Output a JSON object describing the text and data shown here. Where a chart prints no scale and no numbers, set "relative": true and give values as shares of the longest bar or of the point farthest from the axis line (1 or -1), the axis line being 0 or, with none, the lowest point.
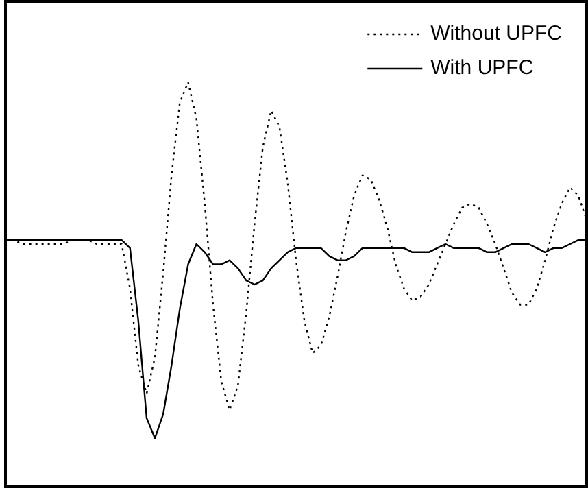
{
  "chart_data": {
    "type": "line",
    "relative": true,
    "legend": "top right",
    "categories": [
      null,
      null,
      null,
      null,
      null,
      null,
      null,
      null,
      null,
      null,
      null,
      null,
      null,
      null,
      null,
      null,
      null,
      null,
      null,
      null,
      null,
      null,
      null,
      null,
      null,
      null,
      null,
      null,
      null,
      null,
      null,
      null,
      null,
      null,
      null,
      null,
      null,
      null,
      null,
      null,
      null,
      null,
      null,
      null,
      null,
      null,
      null,
      null,
      null,
      null,
      null,
      null,
      null,
      null,
      null,
      null,
      null,
      null,
      null,
      null,
      null,
      null,
      null,
      null,
      null,
      null,
      null,
      null,
      null,
      null,
      null
    ],
    "series": [
      {
        "name": "Without UPFC",
        "color": "#000000",
        "line_style": "dotted",
        "values": [
          0.61,
          0.61,
          0.6,
          0.6,
          0.6,
          0.6,
          0.6,
          0.6,
          0.61,
          0.61,
          0.61,
          0.6,
          0.6,
          0.6,
          0.6,
          0.49,
          0.3,
          0.23,
          0.32,
          0.53,
          0.77,
          0.95,
          1.0,
          0.91,
          0.7,
          0.45,
          0.26,
          0.19,
          0.25,
          0.43,
          0.65,
          0.84,
          0.93,
          0.89,
          0.75,
          0.56,
          0.41,
          0.33,
          0.35,
          0.42,
          0.52,
          0.63,
          0.72,
          0.77,
          0.76,
          0.71,
          0.64,
          0.55,
          0.49,
          0.46,
          0.47,
          0.5,
          0.55,
          0.6,
          0.65,
          0.69,
          0.7,
          0.69,
          0.65,
          0.6,
          0.54,
          0.48,
          0.45,
          0.45,
          0.49,
          0.56,
          0.64,
          0.7,
          0.74,
          0.72,
          0.66
        ]
      },
      {
        "name": "With UPFC",
        "color": "#000000",
        "line_style": "solid",
        "values": [
          0.61,
          0.61,
          0.61,
          0.61,
          0.61,
          0.61,
          0.61,
          0.61,
          0.61,
          0.61,
          0.61,
          0.61,
          0.61,
          0.61,
          0.61,
          0.59,
          0.41,
          0.17,
          0.12,
          0.18,
          0.3,
          0.44,
          0.55,
          0.6,
          0.58,
          0.55,
          0.55,
          0.56,
          0.54,
          0.51,
          0.5,
          0.51,
          0.54,
          0.56,
          0.58,
          0.59,
          0.59,
          0.59,
          0.59,
          0.57,
          0.56,
          0.56,
          0.57,
          0.59,
          0.59,
          0.59,
          0.59,
          0.59,
          0.59,
          0.58,
          0.58,
          0.58,
          0.59,
          0.6,
          0.59,
          0.59,
          0.59,
          0.59,
          0.58,
          0.58,
          0.59,
          0.6,
          0.6,
          0.6,
          0.59,
          0.58,
          0.59,
          0.59,
          0.6,
          0.61,
          0.61
        ]
      }
    ]
  }
}
